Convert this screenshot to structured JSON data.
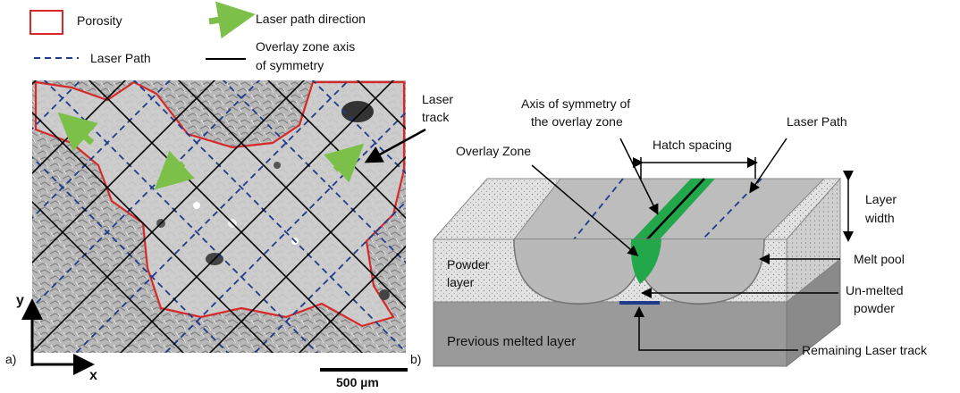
{
  "legend": {
    "porosity": "Porosity",
    "laser_path_direction": "Laser path direction",
    "laser_path": "Laser Path",
    "overlay_axis_line1": "Overlay zone axis",
    "overlay_axis_line2": "of symmetry"
  },
  "panel_a": {
    "tag": "a)",
    "axis_y": "y",
    "axis_x": "x",
    "laser_track_line1": "Laser",
    "laser_track_line2": "track",
    "scale_bar": "500 µm"
  },
  "panel_b": {
    "tag": "b)",
    "axis_symmetry_line1": "Axis of symmetry of",
    "axis_symmetry_line2": "the overlay zone",
    "laser_path": "Laser Path",
    "hatch_spacing": "Hatch spacing",
    "overlay_zone": "Overlay Zone",
    "layer_width_line1": "Layer",
    "layer_width_line2": "width",
    "powder_layer_line1": "Powder",
    "powder_layer_line2": "layer",
    "melt_pool": "Melt pool",
    "unmelted_line1": "Un-melted",
    "unmelted_line2": "powder",
    "previous_layer": "Previous melted layer",
    "remaining_track": "Remaining Laser track"
  },
  "colors": {
    "porosity": "#d62a2a",
    "laser_path": "#1f3b8a",
    "arrow_green": "#7cc04a",
    "overlay_green": "#22a84a",
    "melt_pool": "#b9b9b9",
    "previous_layer": "#9a9a9a",
    "powder": "#dcdcdc"
  }
}
